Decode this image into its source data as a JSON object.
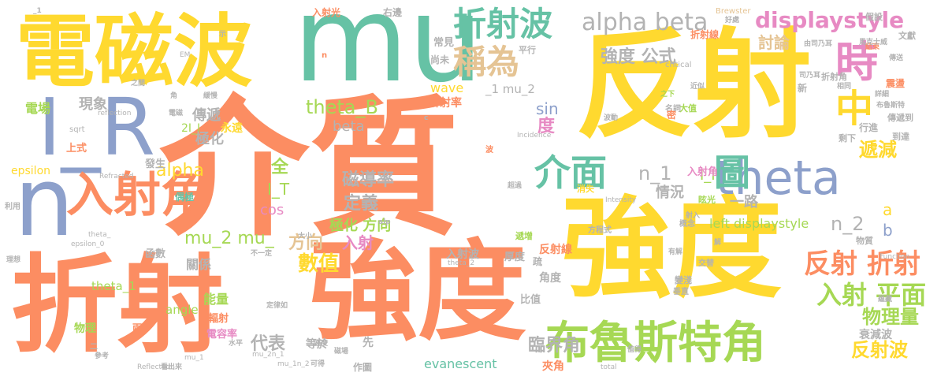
{
  "palette": {
    "orange": "#fc8d62",
    "yellow": "#ffd92f",
    "green": "#66c2a5",
    "blue": "#8da0cb",
    "lime": "#a6d854",
    "tan": "#e5c494",
    "pink": "#e78ac3",
    "gray": "#b3b3b3"
  },
  "words": [
    {
      "text": "介質",
      "color": "orange"
    },
    {
      "text": "反射",
      "color": "yellow"
    },
    {
      "text": "強度",
      "color": "yellow"
    },
    {
      "text": "強度",
      "color": "orange"
    },
    {
      "text": "折射",
      "color": "orange"
    },
    {
      "text": "電磁波",
      "color": "yellow"
    },
    {
      "text": "mu",
      "color": "green"
    },
    {
      "text": "I_R",
      "color": "blue"
    },
    {
      "text": "n",
      "color": "blue"
    },
    {
      "text": "入射角",
      "color": "orange"
    },
    {
      "text": "布魯斯特角",
      "color": "lime"
    },
    {
      "text": "theta",
      "color": "blue"
    },
    {
      "text": "折射波",
      "color": "green"
    },
    {
      "text": "稱為",
      "color": "tan"
    },
    {
      "text": "時",
      "color": "pink"
    },
    {
      "text": "中",
      "color": "yellow"
    },
    {
      "text": "介面",
      "color": "green"
    },
    {
      "text": "圖",
      "color": "green"
    },
    {
      "text": "alpha beta",
      "color": "gray"
    },
    {
      "text": "displaystyle",
      "color": "pink"
    },
    {
      "text": "反射 折射",
      "color": "orange"
    },
    {
      "text": "入射 平面",
      "color": "lime"
    },
    {
      "text": "物理量",
      "color": "lime"
    },
    {
      "text": "反射波",
      "color": "yellow"
    },
    {
      "text": "theta_B",
      "color": "lime"
    },
    {
      "text": "n_1",
      "color": "gray"
    },
    {
      "text": "n_2",
      "color": "gray"
    },
    {
      "text": "遞減",
      "color": "yellow"
    },
    {
      "text": "數值",
      "color": "yellow"
    },
    {
      "text": "臨界角",
      "color": "gray"
    },
    {
      "text": "代表",
      "color": "gray"
    },
    {
      "text": "方向",
      "color": "tan"
    },
    {
      "text": "mu_2 mu_",
      "color": "lime"
    },
    {
      "text": "alpha",
      "color": "yellow"
    },
    {
      "text": "磁導率",
      "color": "gray"
    },
    {
      "text": "定義",
      "color": "gray"
    },
    {
      "text": "入射",
      "color": "pink"
    },
    {
      "text": "極化 方向",
      "color": "lime"
    },
    {
      "text": "I_T",
      "color": "lime"
    },
    {
      "text": "全",
      "color": "lime"
    },
    {
      "text": "cos",
      "color": "pink"
    },
    {
      "text": "強度 公式",
      "color": "gray"
    },
    {
      "text": "討論",
      "color": "tan"
    },
    {
      "text": "傳遞",
      "color": "gray"
    },
    {
      "text": "現象",
      "color": "gray"
    },
    {
      "text": "極化",
      "color": "gray"
    },
    {
      "text": "sin",
      "color": "blue"
    },
    {
      "text": "度",
      "color": "pink"
    },
    {
      "text": "beta",
      "color": "gray"
    },
    {
      "text": "情況",
      "color": "gray"
    },
    {
      "text": "I_I",
      "color": "lime"
    },
    {
      "text": "a",
      "color": "yellow"
    },
    {
      "text": "b",
      "color": "blue"
    },
    {
      "text": "left displaystyle",
      "color": "lime"
    },
    {
      "text": "電場",
      "color": "lime"
    },
    {
      "text": "epsilon",
      "color": "yellow"
    },
    {
      "text": "能量",
      "color": "lime"
    },
    {
      "text": "angle",
      "color": "lime"
    },
    {
      "text": "theta_1",
      "color": "lime"
    },
    {
      "text": "關係",
      "color": "gray"
    },
    {
      "text": "物理",
      "color": "lime"
    },
    {
      "text": "evanescent",
      "color": "green"
    },
    {
      "text": "衰減波",
      "color": "gray"
    },
    {
      "text": "夾角",
      "color": "orange"
    },
    {
      "text": "wave",
      "color": "yellow"
    },
    {
      "text": "_1 mu_2",
      "color": "gray"
    },
    {
      "text": "折射率",
      "color": "orange"
    },
    {
      "text": "一路",
      "color": "gray"
    },
    {
      "text": "入射角",
      "color": "pink"
    },
    {
      "text": "反射線",
      "color": "orange"
    },
    {
      "text": "折射線",
      "color": "orange"
    },
    {
      "text": "厚度",
      "color": "gray"
    },
    {
      "text": "入射波",
      "color": "gray"
    },
    {
      "text": "角度",
      "color": "gray"
    },
    {
      "text": "比值",
      "color": "gray"
    },
    {
      "text": "等於",
      "color": "gray"
    },
    {
      "text": "先",
      "color": "gray"
    },
    {
      "text": "永遠",
      "color": "yellow"
    },
    {
      "text": "2I_I",
      "color": "lime"
    },
    {
      "text": "發生",
      "color": "gray"
    },
    {
      "text": "上式",
      "color": "orange"
    },
    {
      "text": "作圖",
      "color": "gray"
    },
    {
      "text": "輻射",
      "color": "orange"
    },
    {
      "text": "電容率",
      "color": "pink"
    },
    {
      "text": "函數",
      "color": "gray"
    },
    {
      "text": "偶極",
      "color": "green"
    },
    {
      "text": "常見",
      "color": "gray"
    },
    {
      "text": "尚未",
      "color": "gray"
    },
    {
      "text": "右邊",
      "color": "gray"
    },
    {
      "text": "入射光",
      "color": "orange"
    },
    {
      "text": "平行",
      "color": "gray"
    },
    {
      "text": "假設",
      "color": "gray"
    },
    {
      "text": "Brewster",
      "color": "tan"
    },
    {
      "text": "critical",
      "color": "gray"
    },
    {
      "text": "文獻",
      "color": "gray"
    },
    {
      "text": "震盪",
      "color": "orange"
    },
    {
      "text": "行進",
      "color": "gray"
    },
    {
      "text": "傳遞到",
      "color": "gray"
    },
    {
      "text": "到達",
      "color": "gray"
    },
    {
      "text": "剩下",
      "color": "gray"
    },
    {
      "text": "大值",
      "color": "lime"
    },
    {
      "text": "消失",
      "color": "yellow"
    },
    {
      "text": "眩光",
      "color": "lime"
    },
    {
      "text": "遞增",
      "color": "lime"
    },
    {
      "text": "物質",
      "color": "gray"
    },
    {
      "text": "變淺",
      "color": "gray"
    },
    {
      "text": "垂直",
      "color": "gray"
    },
    {
      "text": "交替",
      "color": "gray"
    },
    {
      "text": "方程式",
      "color": "gray"
    },
    {
      "text": "概念",
      "color": "gray"
    },
    {
      "text": "Intensity",
      "color": "gray"
    },
    {
      "text": "Incidence",
      "color": "gray"
    },
    {
      "text": "Function",
      "color": "gray"
    },
    {
      "text": "Refracted",
      "color": "gray"
    },
    {
      "text": "Reflected",
      "color": "gray"
    },
    {
      "text": "reflection",
      "color": "gray"
    },
    {
      "text": "total",
      "color": "gray"
    },
    {
      "text": "sqrt",
      "color": "gray"
    },
    {
      "text": "epsilon_0",
      "color": "gray"
    },
    {
      "text": "mu_2n_1",
      "color": "gray"
    },
    {
      "text": "mu_1n_2",
      "color": "gray"
    },
    {
      "text": "mu_1",
      "color": "gray"
    },
    {
      "text": "theta_2",
      "color": "gray"
    },
    {
      "text": "theta_",
      "color": "gray"
    },
    {
      "text": "EM",
      "color": "gray"
    },
    {
      "text": "利用",
      "color": "gray"
    },
    {
      "text": "理想",
      "color": "gray"
    },
    {
      "text": "參考",
      "color": "gray"
    },
    {
      "text": "值得",
      "color": "gray"
    },
    {
      "text": "超過",
      "color": "gray"
    },
    {
      "text": "相同",
      "color": "gray"
    },
    {
      "text": "之下",
      "color": "lime"
    },
    {
      "text": "名詞",
      "color": "gray"
    },
    {
      "text": "近似",
      "color": "gray"
    },
    {
      "text": "結束",
      "color": "orange"
    },
    {
      "text": "好處",
      "color": "gray"
    },
    {
      "text": "有解",
      "color": "gray"
    },
    {
      "text": "可得",
      "color": "gray"
    },
    {
      "text": "不一定",
      "color": "gray"
    },
    {
      "text": "大小",
      "color": "gray"
    },
    {
      "text": "看出來",
      "color": "gray"
    },
    {
      "text": "速度",
      "color": "gray"
    },
    {
      "text": "定律如",
      "color": "gray"
    },
    {
      "text": "水平",
      "color": "gray"
    },
    {
      "text": "兩",
      "color": "orange"
    },
    {
      "text": "二",
      "color": "gray"
    },
    {
      "text": "波",
      "color": "orange"
    },
    {
      "text": "c",
      "color": "gray"
    },
    {
      "text": "n",
      "color": "orange"
    },
    {
      "text": "_1",
      "color": "gray"
    },
    {
      "text": "之間",
      "color": "gray"
    },
    {
      "text": "緩慢",
      "color": "gray"
    },
    {
      "text": "電磁",
      "color": "gray"
    },
    {
      "text": "傳送",
      "color": "gray"
    },
    {
      "text": "波動",
      "color": "gray"
    },
    {
      "text": "磁場",
      "color": "gray"
    },
    {
      "text": "解",
      "color": "gray"
    },
    {
      "text": "密",
      "color": "orange"
    },
    {
      "text": "疏",
      "color": "gray"
    },
    {
      "text": "新",
      "color": "gray"
    },
    {
      "text": "射入",
      "color": "gray"
    },
    {
      "text": "折射角",
      "color": "gray"
    },
    {
      "text": "馬克士威",
      "color": "gray"
    },
    {
      "text": "由司乃耳",
      "color": "gray"
    },
    {
      "text": "司乃耳",
      "color": "gray"
    },
    {
      "text": "布魯斯特",
      "color": "gray"
    },
    {
      "text": "詳細",
      "color": "gray"
    },
    {
      "text": "角",
      "color": "gray"
    },
    {
      "text": "蘊藏",
      "color": "gray"
    },
    {
      "text": "示",
      "color": "gray"
    },
    {
      "text": "alp",
      "color": "gray"
    }
  ]
}
